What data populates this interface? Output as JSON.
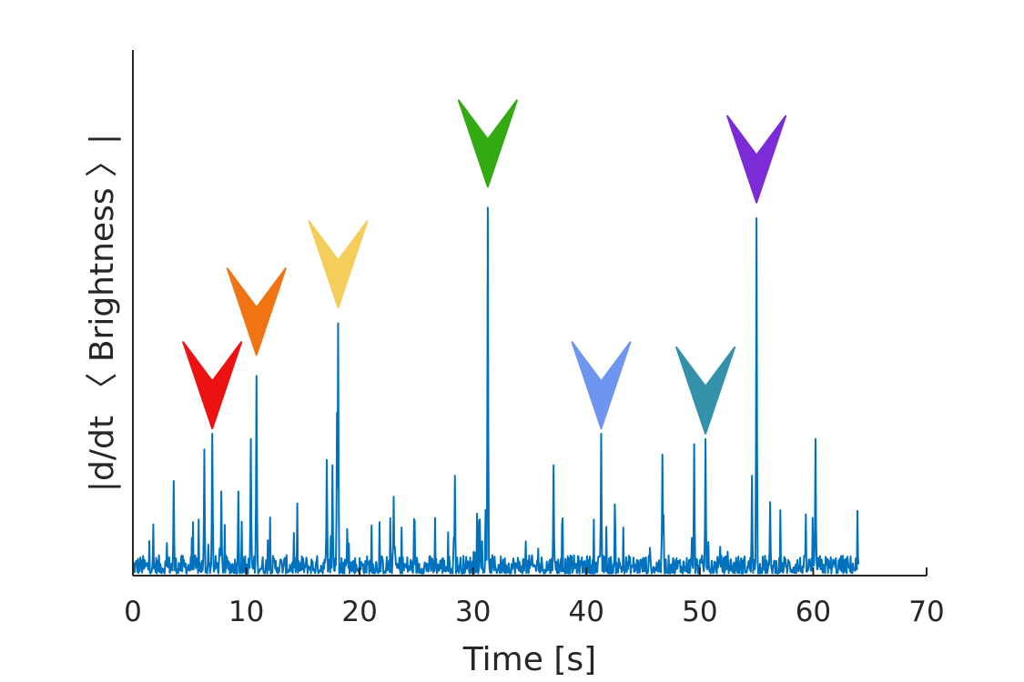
{
  "chart_data": {
    "type": "line",
    "title": "",
    "xlabel": "Time [s]",
    "ylabel": "|d/dt 〈 Brightness 〉|",
    "xlim": [
      0,
      70
    ],
    "ylim": [
      0,
      1
    ],
    "x_ticks": [
      0,
      10,
      20,
      30,
      40,
      50,
      60,
      70
    ],
    "x_tick_labels": [
      "0",
      "10",
      "20",
      "30",
      "40",
      "50",
      "60",
      "70"
    ],
    "y_ticks_shown": false,
    "grid": false,
    "series": [
      {
        "color": "#0072bd",
        "sample_interval": 0.05,
        "x_start": 0,
        "x_end": 64
      }
    ],
    "peaks": [
      {
        "x": 7.0,
        "y": 0.27
      },
      {
        "x": 10.9,
        "y": 0.38
      },
      {
        "x": 18.1,
        "y": 0.48
      },
      {
        "x": 31.3,
        "y": 0.7
      },
      {
        "x": 41.3,
        "y": 0.27
      },
      {
        "x": 50.5,
        "y": 0.26
      },
      {
        "x": 55.0,
        "y": 0.68
      }
    ],
    "secondary_spikes": [
      {
        "x": 3.6,
        "y": 0.18
      },
      {
        "x": 6.3,
        "y": 0.24
      },
      {
        "x": 7.8,
        "y": 0.16
      },
      {
        "x": 9.3,
        "y": 0.16
      },
      {
        "x": 10.4,
        "y": 0.26
      },
      {
        "x": 17.1,
        "y": 0.22
      },
      {
        "x": 17.6,
        "y": 0.21
      },
      {
        "x": 18.0,
        "y": 0.31
      },
      {
        "x": 23.0,
        "y": 0.15
      },
      {
        "x": 28.4,
        "y": 0.19
      },
      {
        "x": 37.1,
        "y": 0.21
      },
      {
        "x": 46.7,
        "y": 0.23
      },
      {
        "x": 49.5,
        "y": 0.25
      },
      {
        "x": 54.6,
        "y": 0.19
      },
      {
        "x": 56.2,
        "y": 0.14
      },
      {
        "x": 60.2,
        "y": 0.26
      }
    ],
    "markers": [
      {
        "x": 7.0,
        "tip_y": 0.28,
        "color": "#ee1111"
      },
      {
        "x": 10.9,
        "tip_y": 0.42,
        "color": "#f07314"
      },
      {
        "x": 18.1,
        "tip_y": 0.51,
        "color": "#f5cd5a"
      },
      {
        "x": 31.3,
        "tip_y": 0.74,
        "color": "#33aa11"
      },
      {
        "x": 41.3,
        "tip_y": 0.28,
        "color": "#6e96f0"
      },
      {
        "x": 50.5,
        "tip_y": 0.27,
        "color": "#3391aa"
      },
      {
        "x": 55.0,
        "tip_y": 0.71,
        "color": "#7b2cd7"
      }
    ]
  }
}
